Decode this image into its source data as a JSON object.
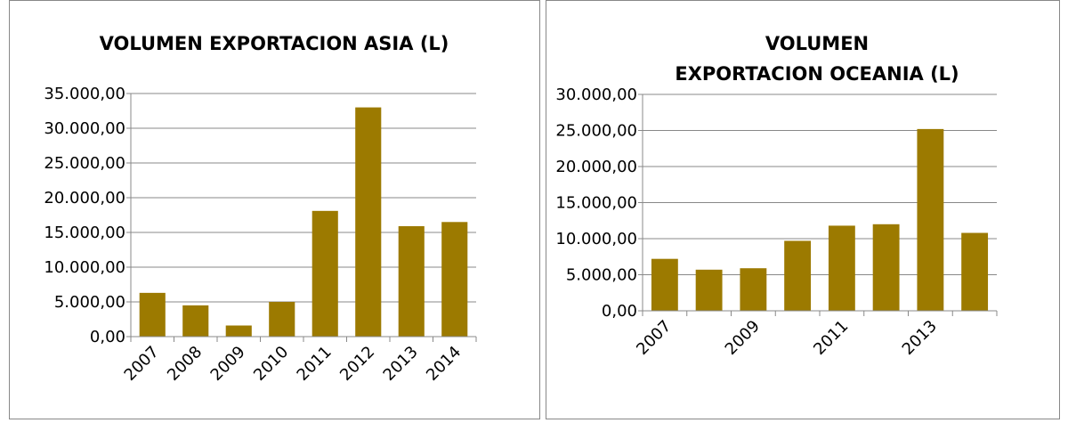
{
  "chart_data": [
    {
      "type": "bar",
      "title": "VOLUMEN EXPORTACION ASIA (L)",
      "categories": [
        "2007",
        "2008",
        "2009",
        "2010",
        "2011",
        "2012",
        "2013",
        "2014"
      ],
      "values": [
        6300,
        4500,
        1600,
        5000,
        18100,
        33000,
        15900,
        16500
      ],
      "color": "#9c7a00",
      "grid": true,
      "ylim": [
        0,
        35000
      ],
      "yticks": [
        {
          "value": 0,
          "label": "0,00"
        },
        {
          "value": 5000,
          "label": "5.000,00"
        },
        {
          "value": 10000,
          "label": "10.000,00"
        },
        {
          "value": 15000,
          "label": "15.000,00"
        },
        {
          "value": 20000,
          "label": "20.000,00"
        },
        {
          "value": 25000,
          "label": "25.000,00"
        },
        {
          "value": 30000,
          "label": "30.000,00"
        },
        {
          "value": 35000,
          "label": "35.000,00"
        }
      ]
    },
    {
      "type": "bar",
      "title": "VOLUMEN EXPORTACION OCEANIA (L)",
      "categories": [
        "2007",
        null,
        "2009",
        null,
        "2011",
        null,
        "2013",
        null
      ],
      "values": [
        7200,
        5700,
        5900,
        9700,
        11800,
        12000,
        25200,
        10800
      ],
      "color": "#9c7a00",
      "grid": true,
      "ylim": [
        0,
        30000
      ],
      "yticks": [
        {
          "value": 0,
          "label": "0,00"
        },
        {
          "value": 5000,
          "label": "5.000,00"
        },
        {
          "value": 10000,
          "label": "10.000,00"
        },
        {
          "value": 15000,
          "label": "15.000,00"
        },
        {
          "value": 20000,
          "label": "20.000,00"
        },
        {
          "value": 25000,
          "label": "25.000,00"
        },
        {
          "value": 30000,
          "label": "30.000,00"
        }
      ]
    }
  ]
}
